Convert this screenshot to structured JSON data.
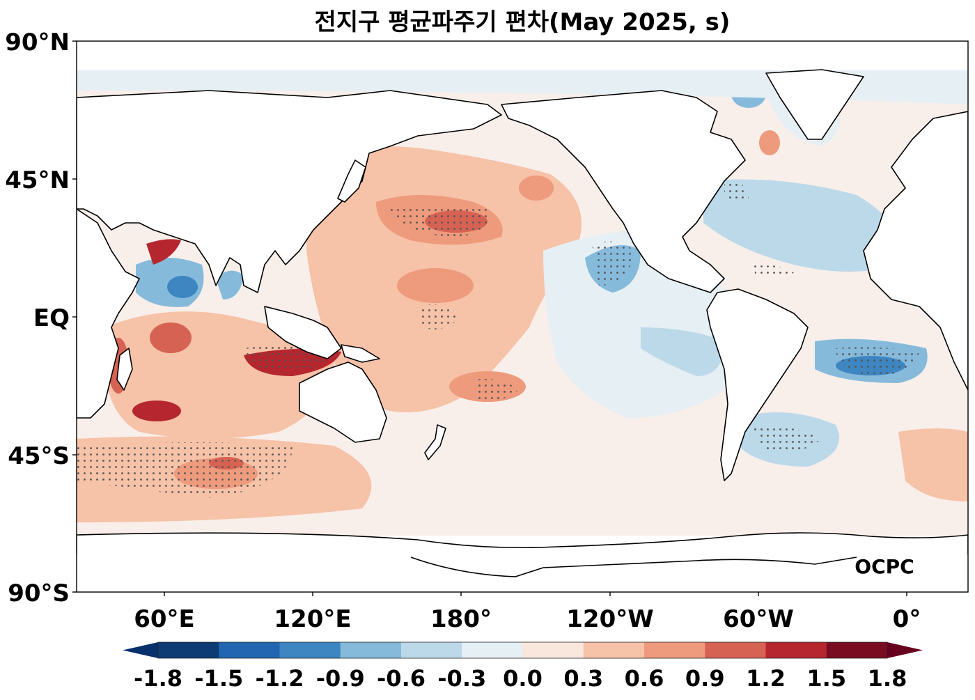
{
  "map": {
    "title": "전지구 평균파주기 편차(May 2025, s)",
    "lat_labels": [
      "90°N",
      "45°N",
      "EQ",
      "45°S",
      "90°S"
    ],
    "lon_labels": [
      "60°E",
      "120°E",
      "180°",
      "120°W",
      "60°W",
      "0°"
    ],
    "logo_text": "OCPC"
  },
  "colorbar": {
    "tick_labels": [
      "-1.8",
      "-1.5",
      "-1.2",
      "-0.9",
      "-0.6",
      "-0.3",
      "0.0",
      "0.3",
      "0.6",
      "0.9",
      "1.2",
      "1.5",
      "1.8"
    ],
    "colors": [
      "#0d3b73",
      "#2266b1",
      "#3d86c2",
      "#86badb",
      "#bcd9ea",
      "#e6eff4",
      "#f9e6dc",
      "#f6c2a8",
      "#ee9a7c",
      "#d66253",
      "#b5262e",
      "#7a0c22"
    ],
    "under_color": "#08306b",
    "over_color": "#67001f"
  }
}
